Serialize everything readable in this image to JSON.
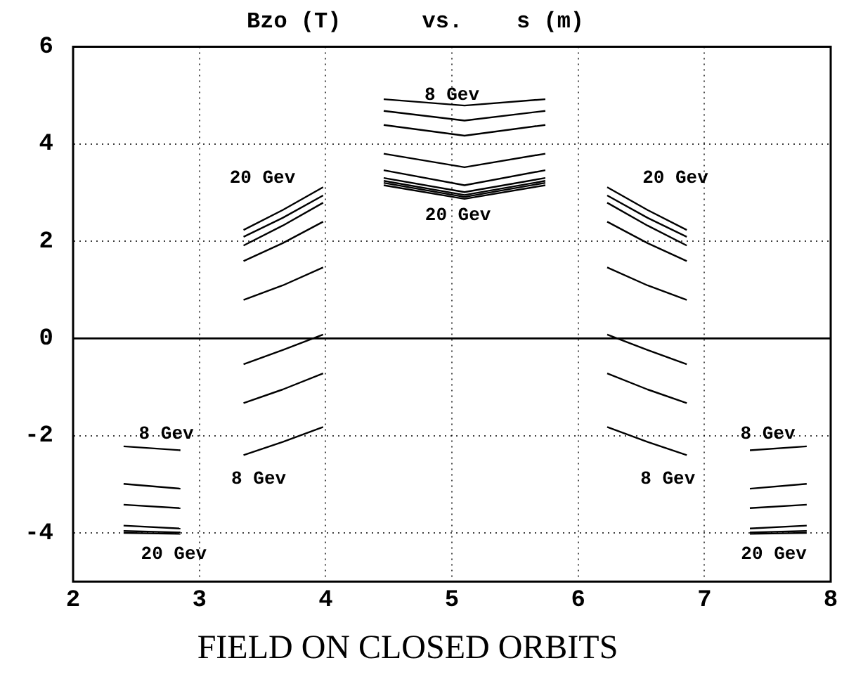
{
  "chart_data": {
    "type": "line",
    "title": "Bzo (T)      vs.    s (m)",
    "xlim": [
      2,
      8
    ],
    "xticks": [
      2,
      3,
      4,
      5,
      6,
      7,
      8
    ],
    "ylim": [
      -5,
      6
    ],
    "yticks": [
      -4,
      -2,
      0,
      2,
      4,
      6
    ],
    "grid": true,
    "legend": false,
    "marker": "none",
    "line_style": "solid",
    "ref_lines": [
      {
        "axis": "y",
        "value": 0,
        "color": "#000000",
        "line_style": "solid"
      }
    ],
    "annotations": [
      "8 Gev",
      "20 Gev",
      "20 Gev",
      "20 Gev",
      "8 Gev",
      "20 Gev",
      "8 Gev",
      "8 Gev",
      "8 Gev",
      "20 Gev",
      "FIELD ON CLOSED ORBITS"
    ],
    "series": [
      {
        "color": "#000000",
        "x": [
          3.35,
          3.66,
          3.98
        ],
        "values": [
          2.23,
          2.64,
          3.11
        ]
      },
      {
        "color": "#000000",
        "x": [
          3.35,
          3.66,
          3.98
        ],
        "values": [
          2.09,
          2.48,
          2.94
        ]
      },
      {
        "color": "#000000",
        "x": [
          3.35,
          3.66,
          3.98
        ],
        "values": [
          1.91,
          2.32,
          2.79
        ]
      },
      {
        "color": "#000000",
        "x": [
          3.35,
          3.66,
          3.98
        ],
        "values": [
          1.59,
          1.96,
          2.4
        ]
      },
      {
        "color": "#000000",
        "x": [
          3.35,
          3.66,
          3.98
        ],
        "values": [
          0.79,
          1.09,
          1.46
        ]
      },
      {
        "color": "#000000",
        "x": [
          6.23,
          6.55,
          6.86
        ],
        "values": [
          3.11,
          2.64,
          2.23
        ]
      },
      {
        "color": "#000000",
        "x": [
          6.23,
          6.55,
          6.86
        ],
        "values": [
          2.94,
          2.48,
          2.09
        ]
      },
      {
        "color": "#000000",
        "x": [
          6.23,
          6.55,
          6.86
        ],
        "values": [
          2.79,
          2.32,
          1.91
        ]
      },
      {
        "color": "#000000",
        "x": [
          6.23,
          6.55,
          6.86
        ],
        "values": [
          2.4,
          1.96,
          1.59
        ]
      },
      {
        "color": "#000000",
        "x": [
          6.23,
          6.55,
          6.86
        ],
        "values": [
          1.46,
          1.09,
          0.79
        ]
      },
      {
        "color": "#000000",
        "x": [
          4.46,
          5.1,
          5.74
        ],
        "values": [
          4.92,
          4.79,
          4.92
        ]
      },
      {
        "color": "#000000",
        "x": [
          4.46,
          5.1,
          5.74
        ],
        "values": [
          4.68,
          4.48,
          4.68
        ]
      },
      {
        "color": "#000000",
        "x": [
          4.46,
          5.1,
          5.74
        ],
        "values": [
          4.39,
          4.17,
          4.39
        ]
      },
      {
        "color": "#000000",
        "x": [
          4.46,
          5.1,
          5.74
        ],
        "values": [
          3.8,
          3.52,
          3.8
        ]
      },
      {
        "color": "#000000",
        "x": [
          4.46,
          5.1,
          5.74
        ],
        "values": [
          3.46,
          3.15,
          3.46
        ]
      },
      {
        "color": "#000000",
        "x": [
          4.46,
          5.1,
          5.74
        ],
        "values": [
          3.3,
          3.01,
          3.3
        ]
      },
      {
        "color": "#000000",
        "x": [
          4.46,
          5.1,
          5.74
        ],
        "values": [
          3.24,
          2.95,
          3.24
        ]
      },
      {
        "color": "#000000",
        "x": [
          4.46,
          5.1,
          5.74
        ],
        "values": [
          3.2,
          2.91,
          3.2
        ]
      },
      {
        "color": "#000000",
        "x": [
          4.46,
          5.1,
          5.74
        ],
        "values": [
          3.15,
          2.87,
          3.15
        ]
      },
      {
        "color": "#000000",
        "x": [
          3.35,
          3.66,
          3.98
        ],
        "values": [
          -0.53,
          -0.24,
          0.08
        ]
      },
      {
        "color": "#000000",
        "x": [
          3.35,
          3.66,
          3.98
        ],
        "values": [
          -1.33,
          -1.05,
          -0.72
        ]
      },
      {
        "color": "#000000",
        "x": [
          3.35,
          3.66,
          3.98
        ],
        "values": [
          -2.4,
          -2.13,
          -1.82
        ]
      },
      {
        "color": "#000000",
        "x": [
          6.23,
          6.55,
          6.86
        ],
        "values": [
          0.08,
          -0.24,
          -0.53
        ]
      },
      {
        "color": "#000000",
        "x": [
          6.23,
          6.55,
          6.86
        ],
        "values": [
          -0.72,
          -1.05,
          -1.33
        ]
      },
      {
        "color": "#000000",
        "x": [
          6.23,
          6.55,
          6.86
        ],
        "values": [
          -1.82,
          -2.13,
          -2.4
        ]
      },
      {
        "color": "#000000",
        "x": [
          2.4,
          2.85
        ],
        "values": [
          -2.22,
          -2.3
        ]
      },
      {
        "color": "#000000",
        "x": [
          2.4,
          2.85
        ],
        "values": [
          -2.99,
          -3.09
        ]
      },
      {
        "color": "#000000",
        "x": [
          2.4,
          2.85
        ],
        "values": [
          -3.42,
          -3.49
        ]
      },
      {
        "color": "#000000",
        "x": [
          2.4,
          2.85
        ],
        "values": [
          -3.85,
          -3.91
        ]
      },
      {
        "color": "#000000",
        "x": [
          2.4,
          2.85
        ],
        "values": [
          -3.96,
          -3.99
        ]
      },
      {
        "color": "#000000",
        "x": [
          2.4,
          2.85
        ],
        "values": [
          -4.0,
          -4.02
        ]
      },
      {
        "color": "#000000",
        "x": [
          7.36,
          7.81
        ],
        "values": [
          -2.3,
          -2.22
        ]
      },
      {
        "color": "#000000",
        "x": [
          7.36,
          7.81
        ],
        "values": [
          -3.09,
          -2.99
        ]
      },
      {
        "color": "#000000",
        "x": [
          7.36,
          7.81
        ],
        "values": [
          -3.49,
          -3.42
        ]
      },
      {
        "color": "#000000",
        "x": [
          7.36,
          7.81
        ],
        "values": [
          -3.91,
          -3.85
        ]
      },
      {
        "color": "#000000",
        "x": [
          7.36,
          7.81
        ],
        "values": [
          -3.99,
          -3.96
        ]
      },
      {
        "color": "#000000",
        "x": [
          7.36,
          7.81
        ],
        "values": [
          -4.02,
          -4.0
        ]
      }
    ]
  }
}
